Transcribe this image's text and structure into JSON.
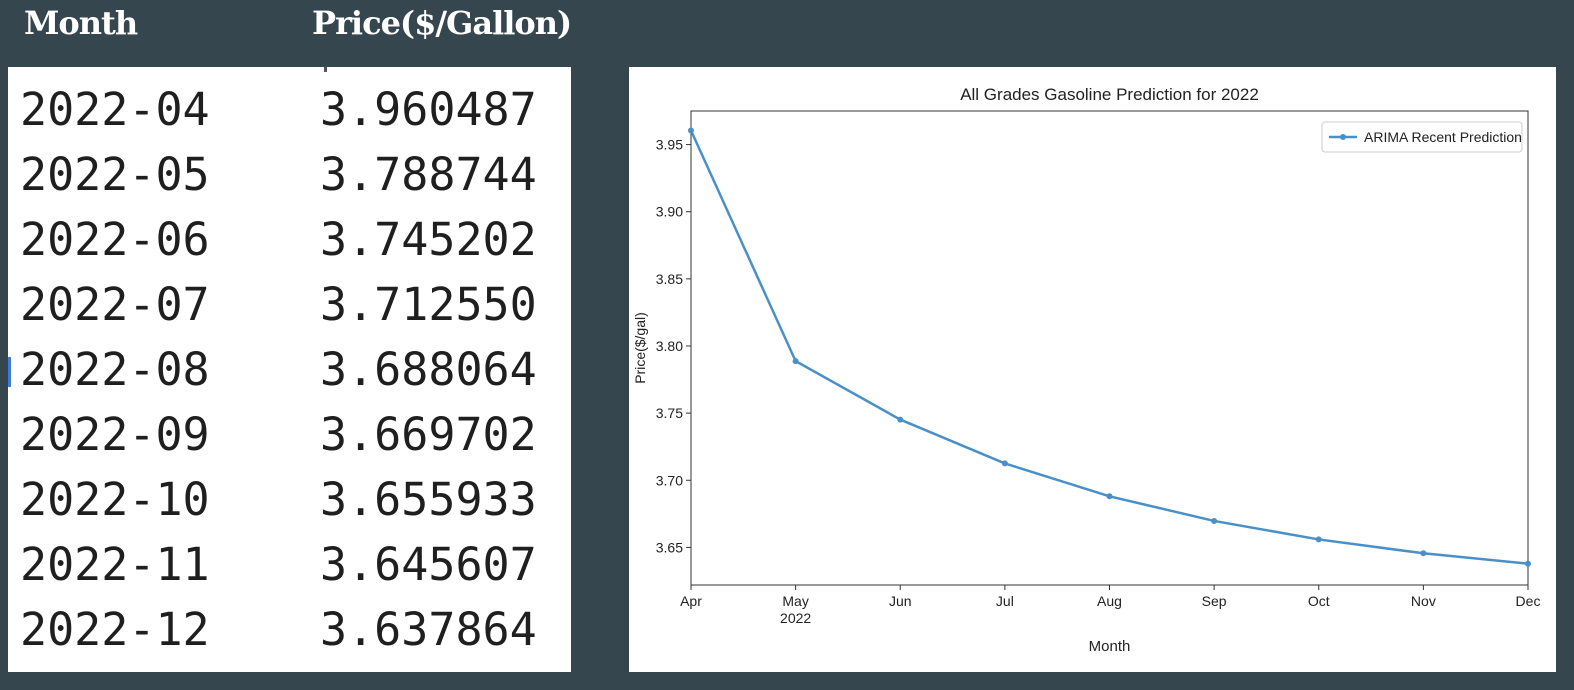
{
  "table": {
    "headers": [
      "Month",
      "Price($/Gallon)"
    ],
    "rows": [
      {
        "month": "2022-04",
        "price": "3.960487"
      },
      {
        "month": "2022-05",
        "price": "3.788744"
      },
      {
        "month": "2022-06",
        "price": "3.745202"
      },
      {
        "month": "2022-07",
        "price": "3.712550"
      },
      {
        "month": "2022-08",
        "price": "3.688064"
      },
      {
        "month": "2022-09",
        "price": "3.669702"
      },
      {
        "month": "2022-10",
        "price": "3.655933"
      },
      {
        "month": "2022-11",
        "price": "3.645607"
      },
      {
        "month": "2022-12",
        "price": "3.637864"
      }
    ]
  },
  "chart_data": {
    "type": "line",
    "title": "All Grades Gasoline Prediction for 2022",
    "xlabel": "Month",
    "ylabel": "Price($/gal)",
    "x": [
      "Apr",
      "May",
      "Jun",
      "Jul",
      "Aug",
      "Sep",
      "Oct",
      "Nov",
      "Dec"
    ],
    "x_sublabel": {
      "May": "2022"
    },
    "ylim": [
      3.622,
      3.975
    ],
    "yticks": [
      "3.65",
      "3.70",
      "3.75",
      "3.80",
      "3.85",
      "3.90",
      "3.95"
    ],
    "grid": false,
    "legend_position": "top-right",
    "series": [
      {
        "name": "ARIMA Recent Prediction",
        "color": "#4a90c8",
        "marker": "dot",
        "values": [
          3.960487,
          3.788744,
          3.745202,
          3.71255,
          3.688064,
          3.669702,
          3.655933,
          3.645607,
          3.637864
        ]
      }
    ]
  }
}
